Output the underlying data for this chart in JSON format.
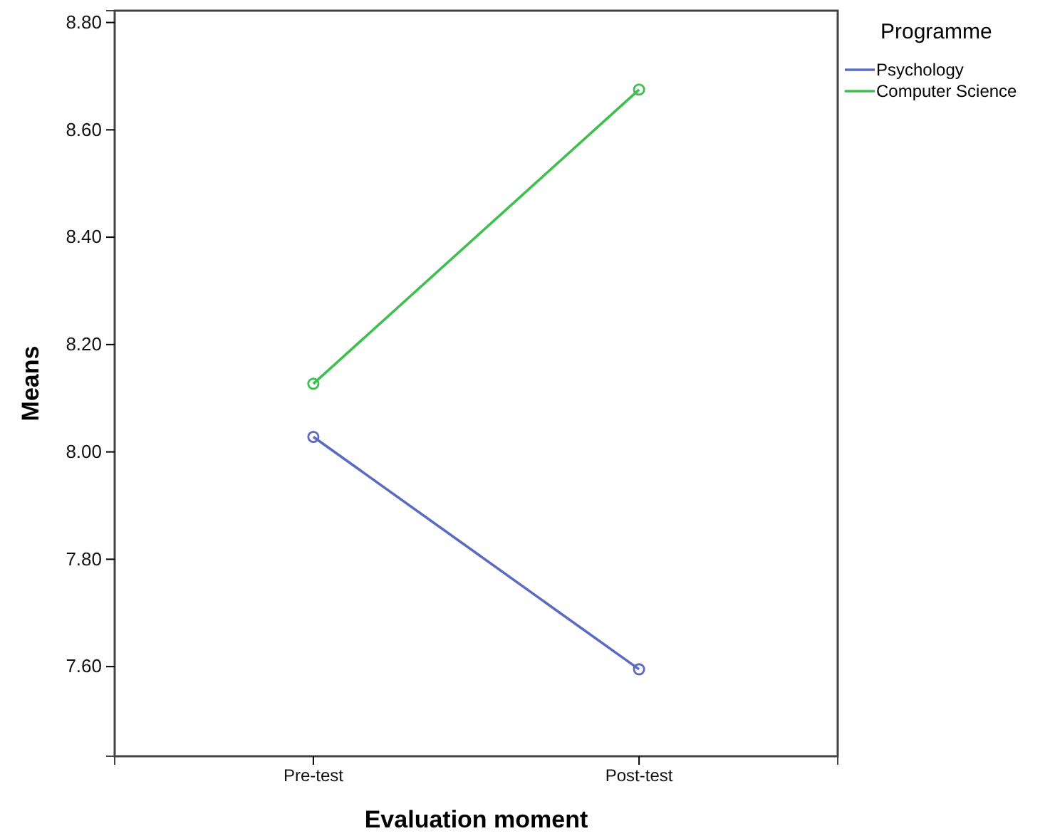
{
  "chart_data": {
    "type": "line",
    "xlabel": "Evaluation moment",
    "ylabel": "Means",
    "legend_title": "Programme",
    "categories": [
      "Pre-test",
      "Post-test"
    ],
    "series": [
      {
        "name": "Psychology",
        "color": "#5b6bc0",
        "values": [
          8.028,
          7.595
        ]
      },
      {
        "name": "Computer Science",
        "color": "#3fbf4f",
        "values": [
          8.127,
          8.675
        ]
      }
    ],
    "ylim": [
      7.433,
      8.822
    ],
    "yticks": [
      {
        "value": 7.6,
        "label": "7.60"
      },
      {
        "value": 7.8,
        "label": "7.80"
      },
      {
        "value": 8.0,
        "label": "8.00"
      },
      {
        "value": 8.2,
        "label": "8.20"
      },
      {
        "value": 8.4,
        "label": "8.40"
      },
      {
        "value": 8.6,
        "label": "8.60"
      },
      {
        "value": 8.8,
        "label": "8.80"
      }
    ],
    "grid": false,
    "legend": "top right",
    "marker": "circle",
    "line_style": "solid"
  }
}
